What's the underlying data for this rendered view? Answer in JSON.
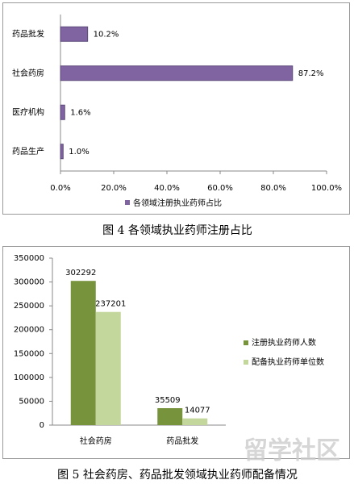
{
  "chart_data": [
    {
      "type": "bar",
      "orientation": "horizontal",
      "caption": "图 4 各领域执业药师注册占比",
      "categories": [
        "药品批发",
        "社会药房",
        "医疗机构",
        "药品生产"
      ],
      "series": [
        {
          "name": "各领域注册执业药师占比",
          "color": "#8064a2",
          "values": [
            10.2,
            87.2,
            1.6,
            1.0
          ],
          "value_labels": [
            "10.2%",
            "87.2%",
            "1.6%",
            "1.0%"
          ]
        }
      ],
      "xlim": [
        0,
        100
      ],
      "xticks": [
        {
          "value": 0,
          "label": "0.0%"
        },
        {
          "value": 20,
          "label": "20.0%"
        },
        {
          "value": 40,
          "label": "40.0%"
        },
        {
          "value": 60,
          "label": "60.0%"
        },
        {
          "value": 80,
          "label": "80.0%"
        },
        {
          "value": 100,
          "label": "100.0%"
        }
      ],
      "legend": "bottom"
    },
    {
      "type": "bar",
      "orientation": "vertical",
      "caption": "图 5 社会药房、药品批发领域执业药师配备情况",
      "categories": [
        "社会药房",
        "药品批发"
      ],
      "series": [
        {
          "name": "注册执业药师人数",
          "color": "#77933c",
          "values": [
            302292,
            35509
          ]
        },
        {
          "name": "配备执业药师单位数",
          "color": "#c3d69b",
          "values": [
            237201,
            14077
          ]
        }
      ],
      "ylim": [
        0,
        350000
      ],
      "yticks": [
        0,
        50000,
        100000,
        150000,
        200000,
        250000,
        300000,
        350000
      ],
      "legend": "right",
      "watermark": "留学社区"
    }
  ]
}
